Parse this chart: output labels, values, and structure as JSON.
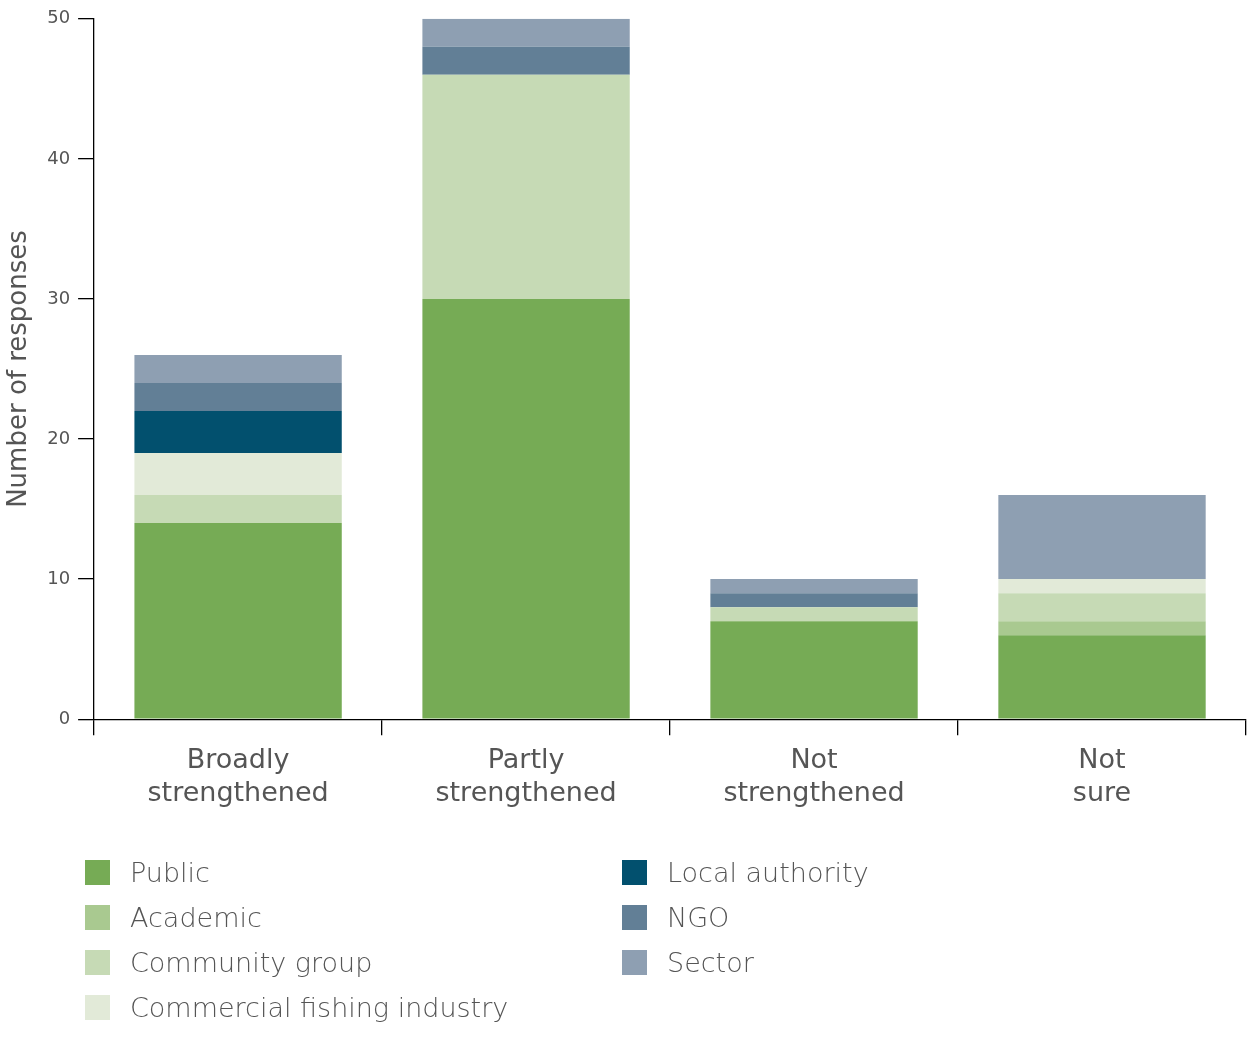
{
  "chart_data": {
    "type": "bar",
    "stacked": true,
    "ylabel": "Number of responses",
    "categories": [
      "Broadly strengthened",
      "Partly strengthened",
      "Not strengthened",
      "Not sure"
    ],
    "ylim": [
      0,
      50
    ],
    "yticks": [
      0,
      10,
      20,
      30,
      40,
      50
    ],
    "grid": false,
    "legend": "bottom",
    "series": [
      {
        "name": "Public",
        "color": "#76ab55",
        "values": [
          14,
          30,
          7,
          6
        ]
      },
      {
        "name": "Academic",
        "color": "#a9c990",
        "values": [
          0,
          0,
          0,
          1
        ]
      },
      {
        "name": "Community group",
        "color": "#c6dab5",
        "values": [
          2,
          16,
          1,
          2
        ]
      },
      {
        "name": "Commercial fishing industry",
        "color": "#e2ead8",
        "values": [
          3,
          0,
          0,
          1
        ]
      },
      {
        "name": "Local authority",
        "color": "#02506e",
        "values": [
          3,
          0,
          0,
          0
        ]
      },
      {
        "name": "NGO",
        "color": "#627f96",
        "values": [
          2,
          2,
          1,
          0
        ]
      },
      {
        "name": "Sector",
        "color": "#8e9fb2",
        "values": [
          2,
          2,
          1,
          6
        ]
      }
    ]
  }
}
